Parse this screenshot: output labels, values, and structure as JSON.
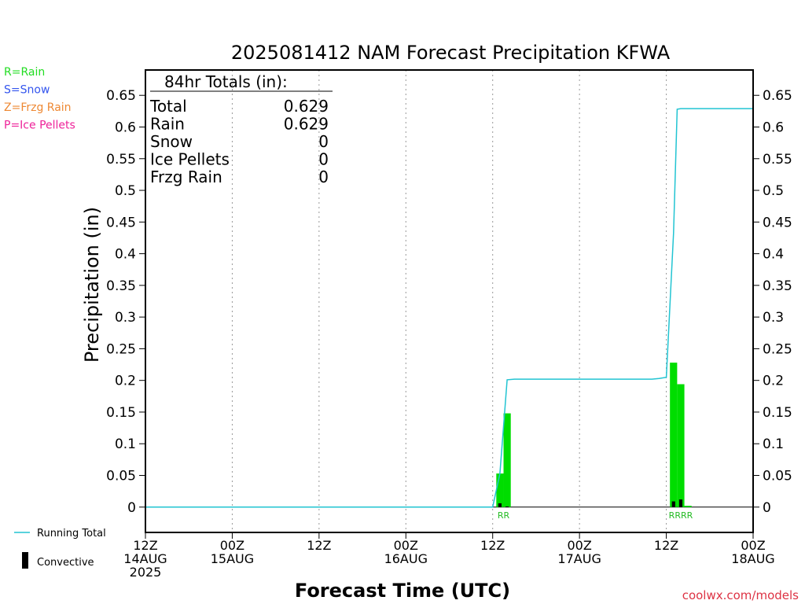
{
  "chart_data": {
    "type": "bar",
    "title": "2025081412 NAM Forecast Precipitation KFWA",
    "xlabel": "Forecast Time (UTC)",
    "ylabel": "Precipitation (in)",
    "ylim": [
      -0.04,
      0.69
    ],
    "y_ticks": [
      0,
      0.05,
      0.1,
      0.15,
      0.2,
      0.25,
      0.3,
      0.35,
      0.4,
      0.45,
      0.5,
      0.55,
      0.6,
      0.65
    ],
    "y_tick_labels": [
      "0",
      "0.05",
      "0.1",
      "0.15",
      "0.2",
      "0.25",
      "0.3",
      "0.35",
      "0.4",
      "0.45",
      "0.5",
      "0.55",
      "0.6",
      "0.65"
    ],
    "x_unit": "forecast hour",
    "xlim": [
      0,
      84
    ],
    "x_ticks": [
      {
        "x": 0,
        "line1": "12Z",
        "line2": "14AUG",
        "line3": "2025"
      },
      {
        "x": 12,
        "line1": "00Z",
        "line2": "15AUG",
        "line3": ""
      },
      {
        "x": 24,
        "line1": "12Z",
        "line2": "",
        "line3": ""
      },
      {
        "x": 36,
        "line1": "00Z",
        "line2": "16AUG",
        "line3": ""
      },
      {
        "x": 48,
        "line1": "12Z",
        "line2": "",
        "line3": ""
      },
      {
        "x": 60,
        "line1": "00Z",
        "line2": "17AUG",
        "line3": ""
      },
      {
        "x": 72,
        "line1": "12Z",
        "line2": "",
        "line3": ""
      },
      {
        "x": 84,
        "line1": "00Z",
        "line2": "18AUG",
        "line3": ""
      }
    ],
    "grid": "dotted vertical lines at each x tick",
    "series": [
      {
        "name": "Rain",
        "kind": "bar",
        "color": "#00dd00",
        "hours": [
          49,
          50,
          73,
          74,
          75
        ],
        "values": [
          0.053,
          0.148,
          0.228,
          0.194,
          0.002
        ]
      },
      {
        "name": "Convective",
        "kind": "bar",
        "color": "#000000",
        "hours": [
          49,
          50,
          73,
          74
        ],
        "values": [
          0.006,
          0.001,
          0.009,
          0.012
        ]
      },
      {
        "name": "Running Total",
        "kind": "line",
        "color": "#22c4d2",
        "x": [
          0,
          46,
          48,
          49,
          50,
          51,
          60,
          70,
          71,
          72,
          73,
          73.5,
          74,
          84
        ],
        "y": [
          0,
          0,
          0,
          0.053,
          0.201,
          0.202,
          0.202,
          0.202,
          0.203,
          0.205,
          0.433,
          0.628,
          0.629,
          0.629
        ]
      }
    ],
    "precip_type_labels": [
      {
        "x": 49.5,
        "text": "RR"
      },
      {
        "x": 74,
        "text": "RRRR"
      }
    ],
    "totals_box": {
      "heading": "84hr Totals (in):",
      "rows": [
        {
          "label": "Total",
          "value": "0.629"
        },
        {
          "label": "Rain",
          "value": "0.629"
        },
        {
          "label": "Snow",
          "value": "0"
        },
        {
          "label": "Ice Pellets",
          "value": "0"
        },
        {
          "label": "Frzg Rain",
          "value": "0"
        }
      ]
    },
    "type_key": [
      {
        "text": "R=Rain",
        "color": "#22dd22"
      },
      {
        "text": "S=Snow",
        "color": "#3355ee"
      },
      {
        "text": "Z=Frzg Rain",
        "color": "#ee8833"
      },
      {
        "text": "P=Ice Pellets",
        "color": "#ee2299"
      }
    ],
    "legend": {
      "placement": "bottom-left",
      "running_total_label": "Running Total",
      "convective_label": "Convective"
    },
    "credit": "coolwx.com/models",
    "credit_color": "#dd3344"
  }
}
